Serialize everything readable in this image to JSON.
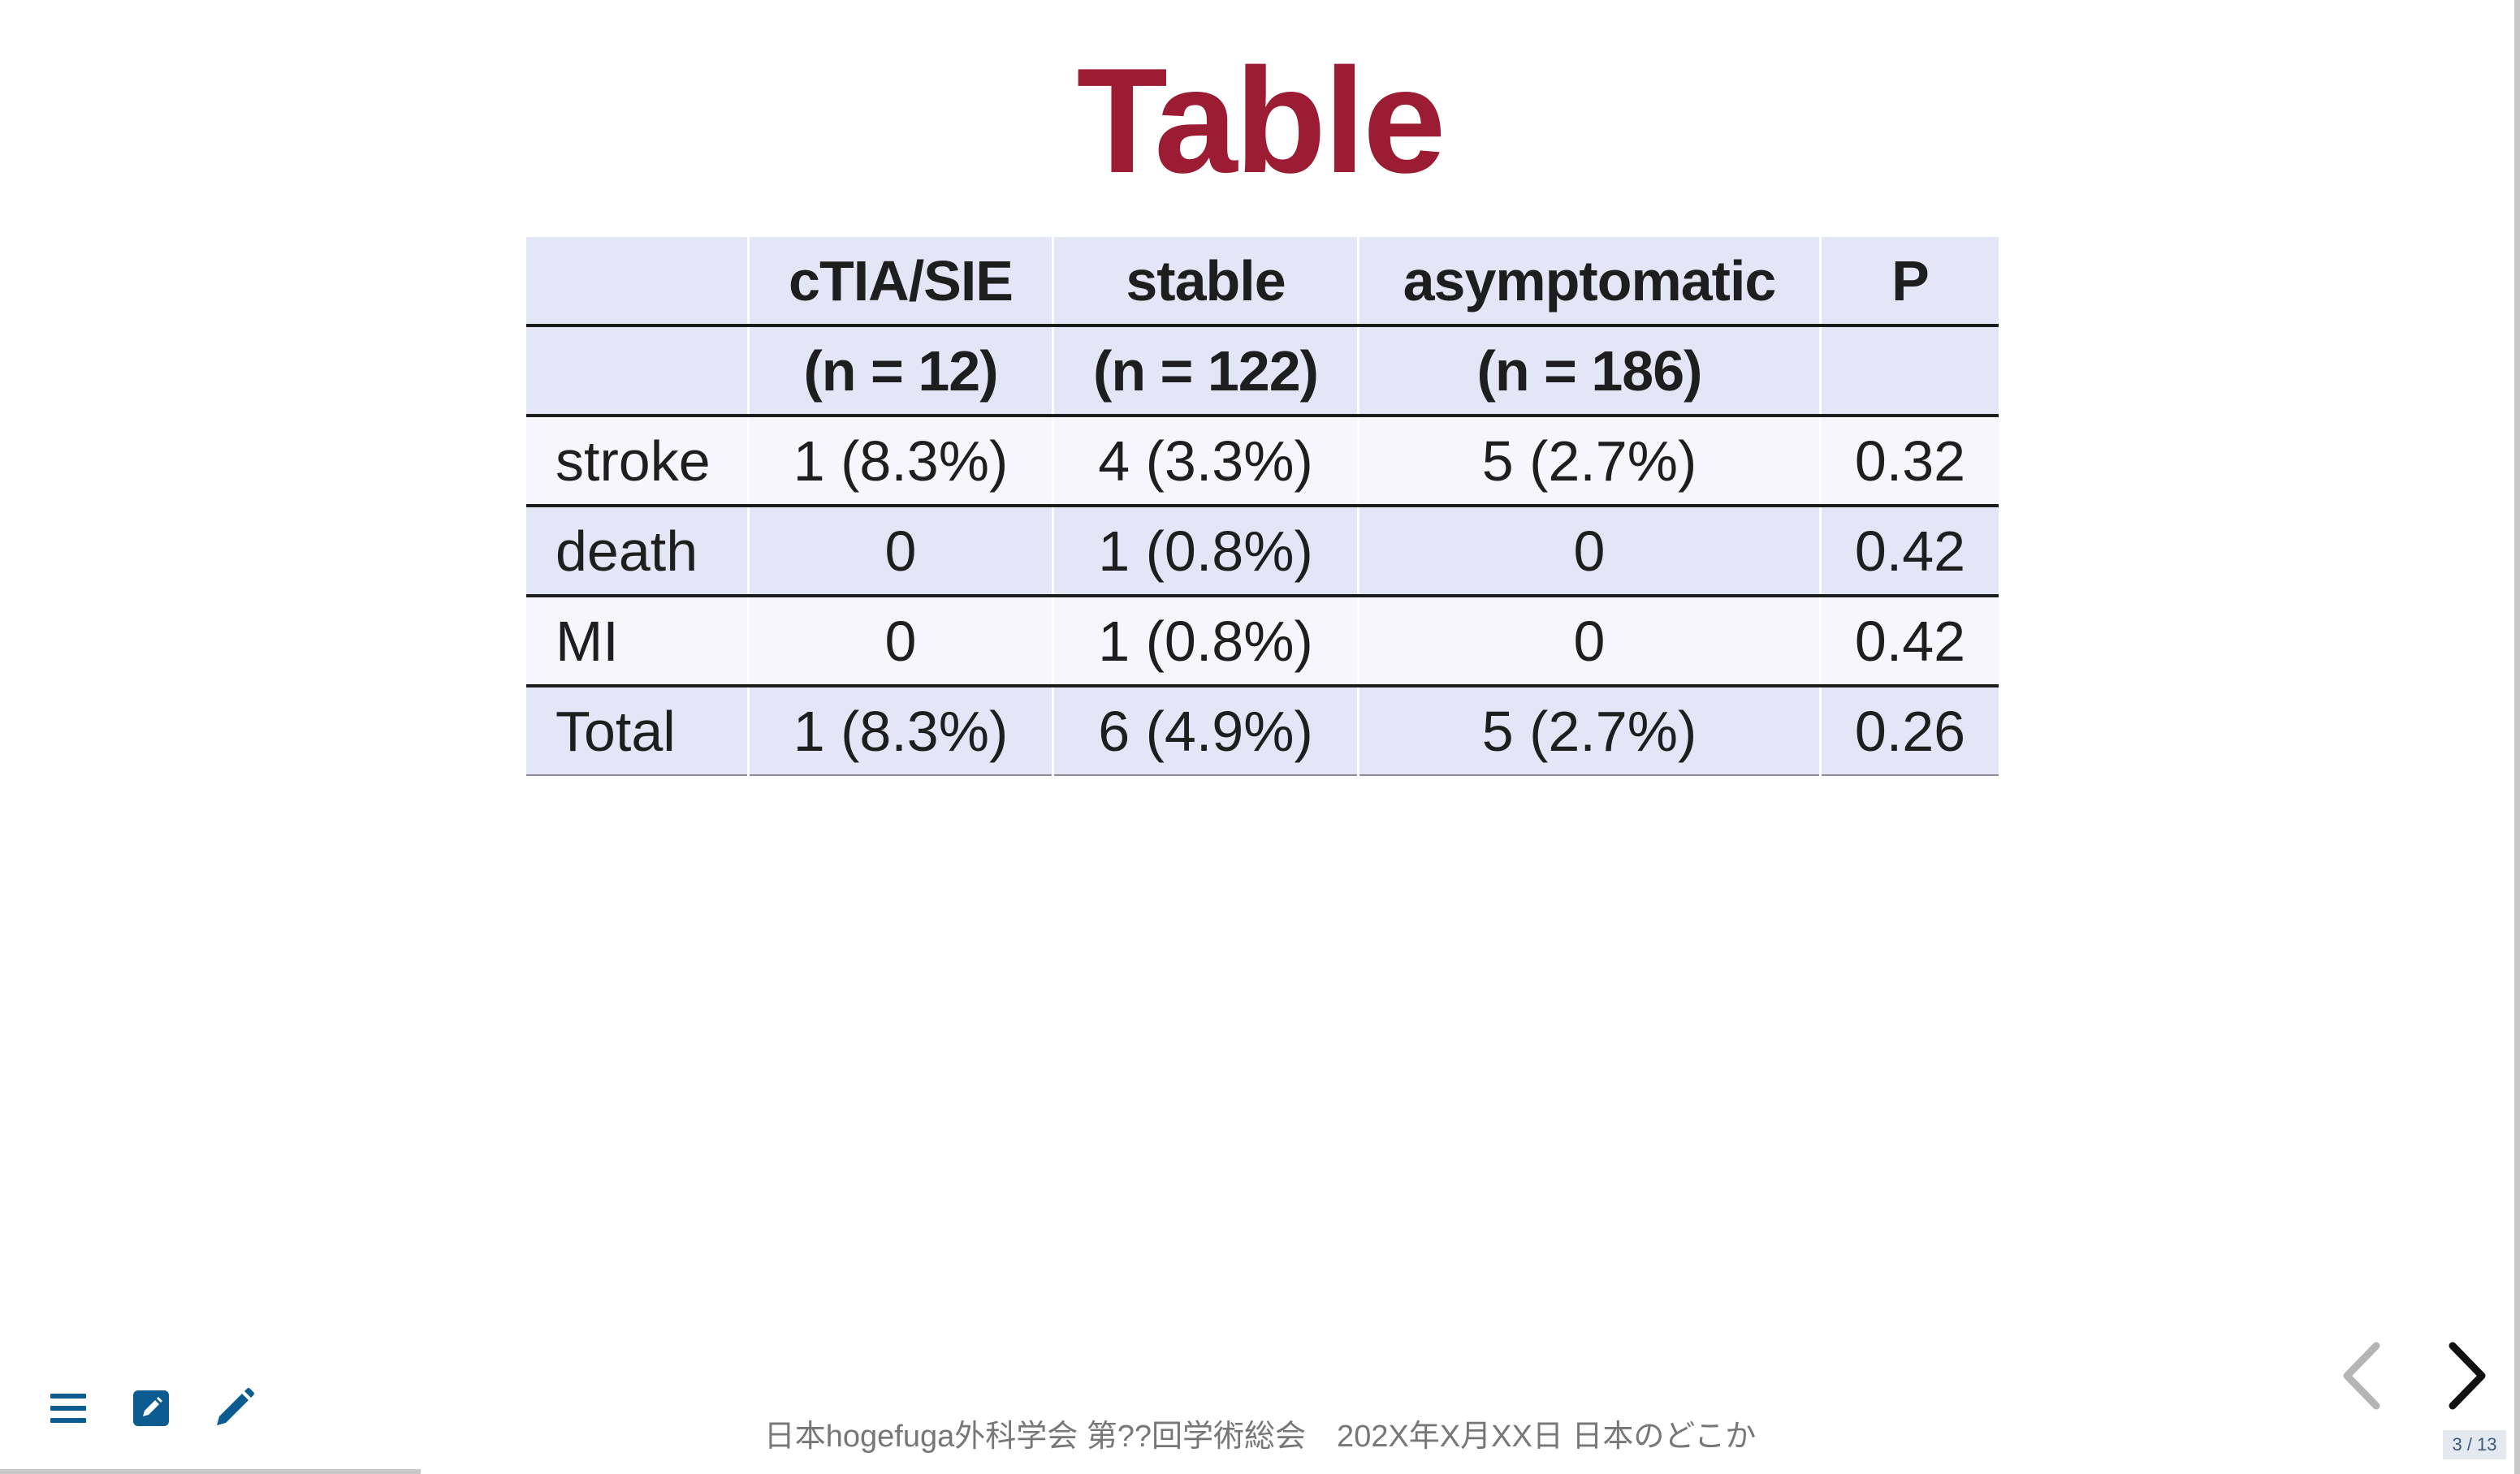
{
  "slide": {
    "title": "Table",
    "footer": "日本hogefuga外科学会 第??回学術総会　202X年X月XX日 日本のどこか",
    "page_indicator": "3 / 13"
  },
  "table": {
    "headers": [
      "",
      "cTIA/SIE",
      "stable",
      "asymptomatic",
      "P"
    ],
    "subheaders": [
      "",
      "(n = 12)",
      "(n = 122)",
      "(n = 186)",
      ""
    ],
    "rows": [
      [
        "stroke",
        "1 (8.3%)",
        "4 (3.3%)",
        "5 (2.7%)",
        "0.32"
      ],
      [
        "death",
        "0",
        "1 (0.8%)",
        "0",
        "0.42"
      ],
      [
        "MI",
        "0",
        "1 (0.8%)",
        "0",
        "0.42"
      ],
      [
        "Total",
        "1 (8.3%)",
        "6 (4.9%)",
        "5 (2.7%)",
        "0.26"
      ]
    ]
  },
  "toolbar": {
    "icons": [
      "menu-icon",
      "edit-square-icon",
      "pencil-icon"
    ],
    "icon_color": "#0d5c91"
  },
  "navigation": {
    "prev_icon": "chevron-left-icon",
    "next_icon": "chevron-right-icon"
  },
  "colors": {
    "title": "#9b1c33",
    "header_bg": "#e4e6f8",
    "row_light_bg": "#f6f6fc"
  }
}
